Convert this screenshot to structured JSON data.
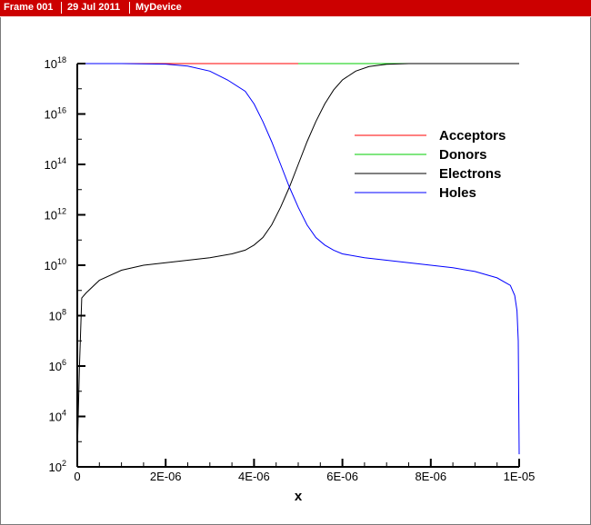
{
  "header": {
    "frame": "Frame 001",
    "date": "29 Jul 2011",
    "device": "MyDevice"
  },
  "chart_data": {
    "type": "line",
    "xlabel": "x",
    "ylabel": "",
    "xlim": [
      0,
      1e-05
    ],
    "ylim_log10": [
      2,
      18
    ],
    "y_scale": "log",
    "grid": false,
    "legend_placement": "top-right",
    "x_tick_labels": [
      "0",
      "2E-06",
      "4E-06",
      "6E-06",
      "8E-06",
      "1E-05"
    ],
    "x_ticks": [
      0,
      2e-06,
      4e-06,
      6e-06,
      8e-06,
      1e-05
    ],
    "y_ticks_exp": [
      "2",
      "4",
      "6",
      "8",
      "10",
      "12",
      "14",
      "16",
      "18"
    ],
    "y_tick_base": "10",
    "series": [
      {
        "name": "Acceptors",
        "color": "#ff0000",
        "x": [
          0,
          5e-06
        ],
        "y_log10": [
          18,
          18
        ]
      },
      {
        "name": "Donors",
        "color": "#00cc00",
        "x": [
          5e-06,
          1e-05
        ],
        "y_log10": [
          18,
          18
        ]
      },
      {
        "name": "Electrons",
        "color": "#000000",
        "x": [
          0,
          5e-08,
          1e-07,
          2e-07,
          5e-07,
          1e-06,
          1.5e-06,
          2e-06,
          2.5e-06,
          3e-06,
          3.5e-06,
          3.8e-06,
          4e-06,
          4.2e-06,
          4.4e-06,
          4.6e-06,
          4.8e-06,
          5e-06,
          5.2e-06,
          5.4e-06,
          5.6e-06,
          5.8e-06,
          6e-06,
          6.3e-06,
          6.6e-06,
          7e-06,
          7.5e-06,
          8e-06,
          9e-06,
          1e-05
        ],
        "y_log10": [
          2.5,
          6.0,
          8.7,
          8.9,
          9.4,
          9.8,
          10.0,
          10.1,
          10.2,
          10.3,
          10.45,
          10.6,
          10.8,
          11.1,
          11.6,
          12.3,
          13.1,
          14.0,
          14.9,
          15.7,
          16.4,
          16.95,
          17.35,
          17.7,
          17.88,
          17.97,
          18.0,
          18.0,
          18.0,
          18.0
        ]
      },
      {
        "name": "Holes",
        "color": "#0000ff",
        "x": [
          0,
          1e-06,
          2e-06,
          2.5e-06,
          3e-06,
          3.4e-06,
          3.8e-06,
          4e-06,
          4.2e-06,
          4.4e-06,
          4.6e-06,
          4.8e-06,
          5e-06,
          5.2e-06,
          5.4e-06,
          5.6e-06,
          5.8e-06,
          6e-06,
          6.5e-06,
          7e-06,
          7.5e-06,
          8e-06,
          8.5e-06,
          9e-06,
          9.5e-06,
          9.8e-06,
          9.9e-06,
          9.95e-06,
          9.98e-06,
          1e-05
        ],
        "y_log10": [
          18.0,
          18.0,
          17.98,
          17.9,
          17.7,
          17.35,
          16.9,
          16.4,
          15.7,
          14.9,
          14.0,
          13.1,
          12.3,
          11.6,
          11.1,
          10.8,
          10.6,
          10.45,
          10.3,
          10.2,
          10.1,
          10.0,
          9.9,
          9.75,
          9.5,
          9.2,
          8.8,
          8.2,
          7.0,
          2.5
        ]
      }
    ]
  }
}
